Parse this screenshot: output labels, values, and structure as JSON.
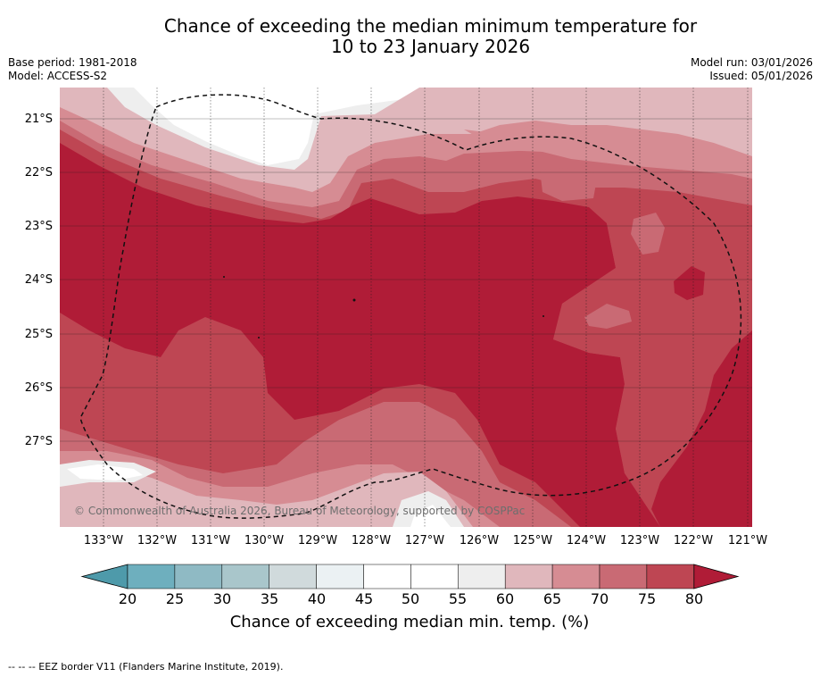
{
  "title_line1": "Chance of exceeding the median minimum temperature for",
  "title_line2": "10 to 23 January 2026",
  "base_period": "Base period: 1981-2018",
  "model": "Model: ACCESS-S2",
  "model_run": "Model run: 03/01/2026",
  "issued": "Issued: 05/01/2026",
  "copyright": "© Commonwealth of Australia 2026, Bureau of Meteorology, supported by COSPPac",
  "lat_labels": [
    "21°S",
    "22°S",
    "23°S",
    "24°S",
    "25°S",
    "26°S",
    "27°S"
  ],
  "lon_labels": [
    "133°W",
    "132°W",
    "131°W",
    "130°W",
    "129°W",
    "128°W",
    "127°W",
    "126°W",
    "125°W",
    "124°W",
    "123°W",
    "122°W",
    "121°W"
  ],
  "colorbar": {
    "ticks": [
      "20",
      "25",
      "30",
      "35",
      "40",
      "45",
      "50",
      "55",
      "60",
      "65",
      "70",
      "75",
      "80"
    ],
    "colors": [
      "#4e9aaa",
      "#6eafbe",
      "#8fbac4",
      "#a9c6cb",
      "#d0dadc",
      "#ebf1f3",
      "#ffffff",
      "#ffffff",
      "#eeeeee",
      "#e0b7bc",
      "#d68c93",
      "#c96a74",
      "#be4653",
      "#b01c37"
    ],
    "title": "Chance of exceeding median min. temp. (%)"
  },
  "footer": "--  --  -- EEZ border V11 (Flanders Marine Institute, 2019).",
  "map_colors": {
    "c55_60": "#eeeeee",
    "c60_65": "#e0b7bc",
    "c65_70": "#d68c93",
    "c70_75": "#c96a74",
    "c75_80": "#be4653",
    "c80": "#b01c37"
  }
}
